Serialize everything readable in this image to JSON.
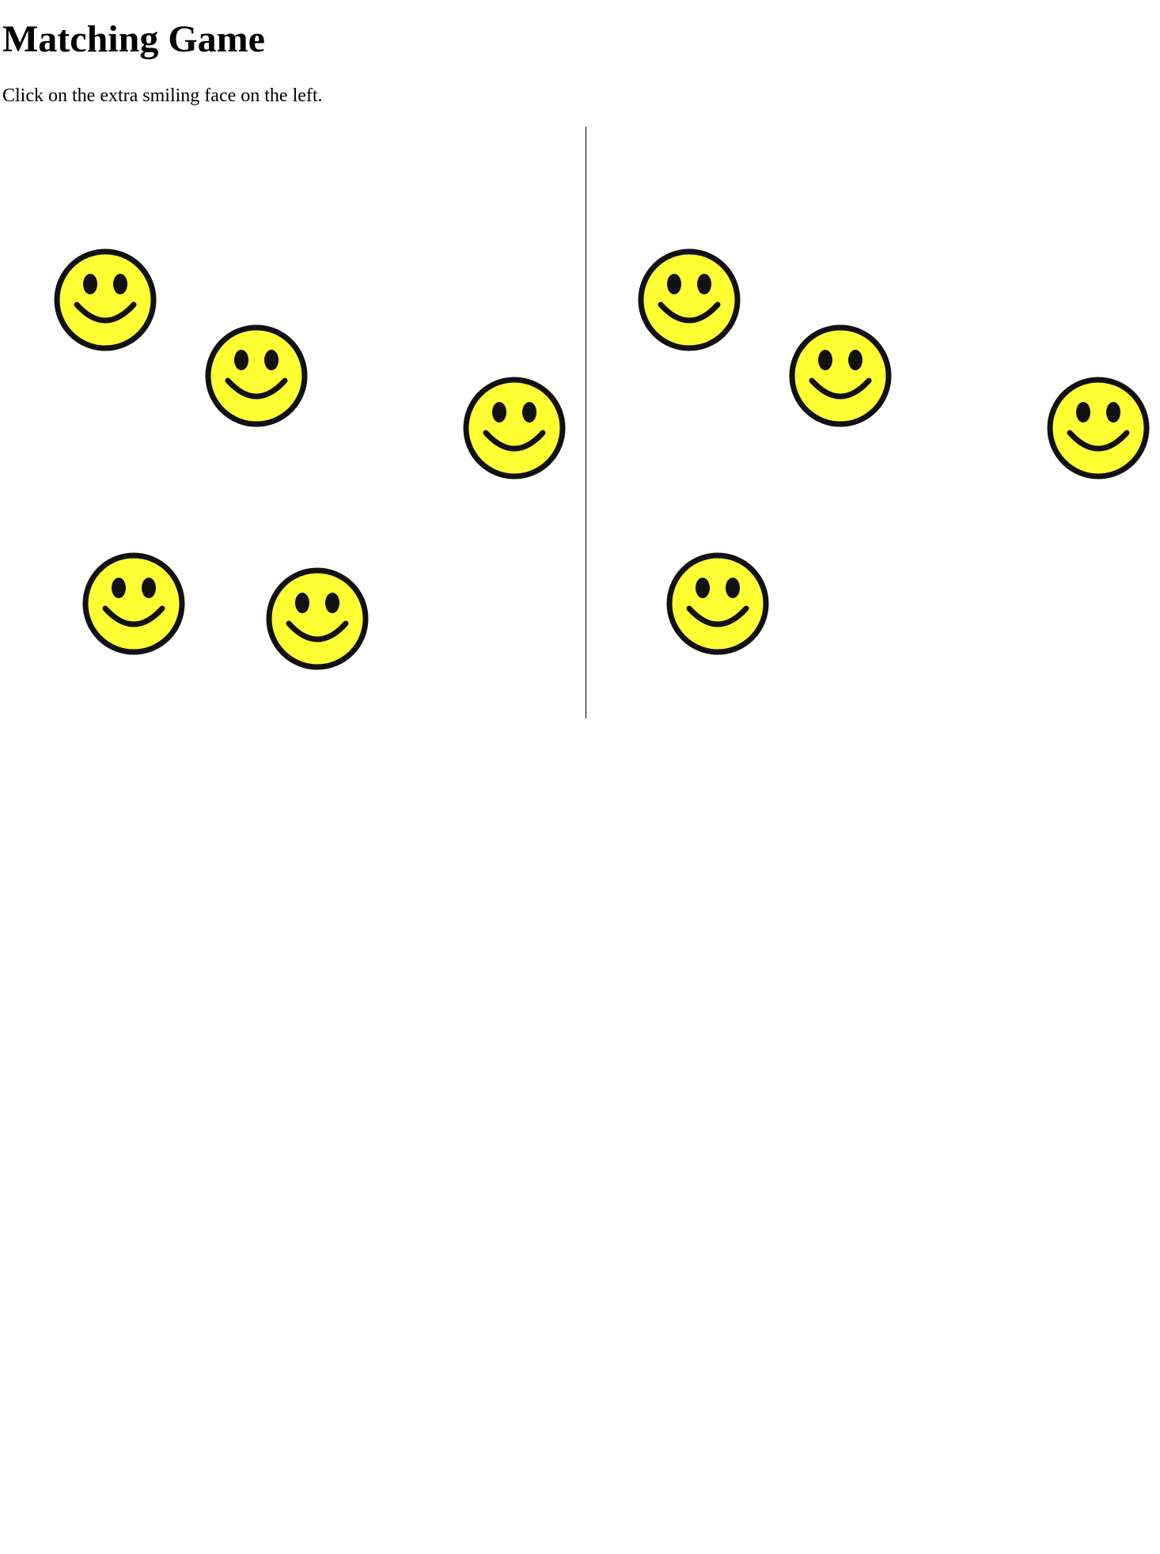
{
  "page": {
    "title": "Matching Game",
    "instructions": "Click on the extra smiling face on the left."
  },
  "colors": {
    "face_fill": "#ffff33",
    "face_outline": "#111111"
  },
  "icon": "smiley-face-icon",
  "game": {
    "left_face_count": 5,
    "right_face_count": 4
  }
}
